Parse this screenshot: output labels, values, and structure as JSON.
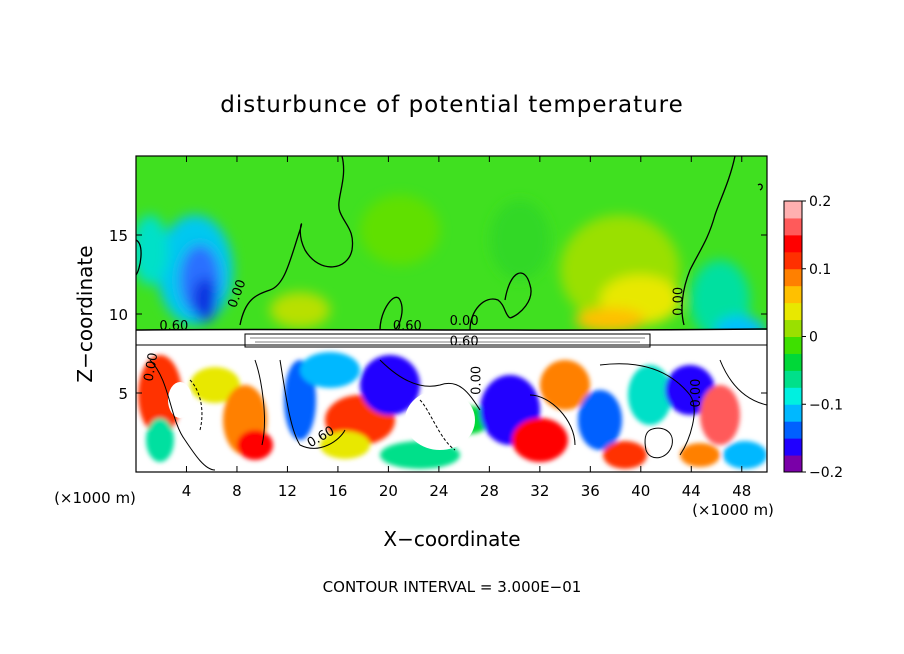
{
  "chart_data": {
    "type": "heatmap",
    "title": "disturbunce of potential temperature",
    "xlabel": "X−coordinate",
    "ylabel": "Z−coordinate",
    "x_unit_left": "(×1000 m)",
    "x_unit_right": "(×1000 m)",
    "x_ticks": [
      "4",
      "8",
      "12",
      "16",
      "20",
      "24",
      "28",
      "32",
      "36",
      "40",
      "44",
      "48"
    ],
    "x_tick_values": [
      4,
      8,
      12,
      16,
      20,
      24,
      28,
      32,
      36,
      40,
      44,
      48
    ],
    "y_ticks": [
      "5",
      "10",
      "15"
    ],
    "y_tick_values": [
      5,
      10,
      15
    ],
    "xlim": [
      0,
      50
    ],
    "ylim": [
      0,
      20
    ],
    "colorbar": {
      "ticks": [
        "0.2",
        "0.1",
        "0",
        "−0.1",
        "−0.2"
      ],
      "tick_values": [
        0.2,
        0.1,
        0,
        -0.1,
        -0.2
      ],
      "range": [
        -0.2,
        0.2
      ],
      "colors": [
        "#7a00a8",
        "#2000ff",
        "#0060ff",
        "#00b8ff",
        "#00f0e0",
        "#00e08a",
        "#00d838",
        "#3ee000",
        "#9ae000",
        "#e8e800",
        "#ffc000",
        "#ff8000",
        "#ff3000",
        "#ff0000",
        "#ff5a5a",
        "#ffb0b0"
      ]
    },
    "contour_labels": [
      {
        "text": "0.00",
        "x": 8.3,
        "z": 11.2,
        "rotate": -70
      },
      {
        "text": "0.60",
        "x": 3.0,
        "z": 9.0,
        "rotate": 0
      },
      {
        "text": "0.00",
        "x": 1.5,
        "z": 6.6,
        "rotate": -80
      },
      {
        "text": "0.60",
        "x": 21.5,
        "z": 9.0,
        "rotate": 0
      },
      {
        "text": "0.00",
        "x": 26.0,
        "z": 9.3,
        "rotate": 0
      },
      {
        "text": "0.60",
        "x": 26.0,
        "z": 8.0,
        "rotate": 0
      },
      {
        "text": "0.00",
        "x": 27.3,
        "z": 5.8,
        "rotate": -90
      },
      {
        "text": "0.60",
        "x": 14.8,
        "z": 2.0,
        "rotate": -30
      },
      {
        "text": "0.00",
        "x": 43.3,
        "z": 10.8,
        "rotate": -90
      },
      {
        "text": "0.00",
        "x": 44.7,
        "z": 5.0,
        "rotate": -90
      }
    ],
    "footer": "CONTOUR INTERVAL = 3.000E−01"
  }
}
